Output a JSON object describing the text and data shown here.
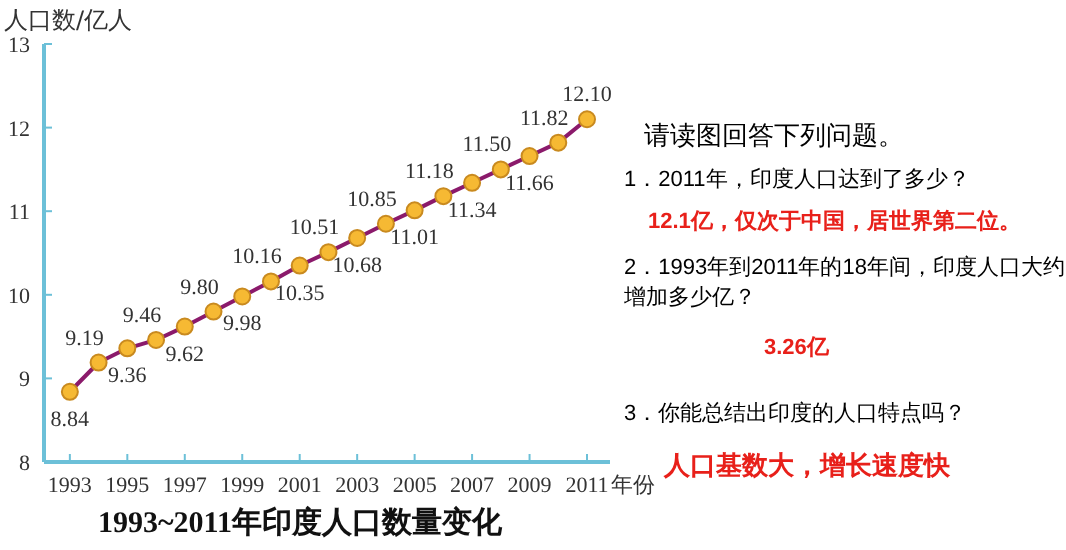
{
  "chart_data": [
    {
      "type": "line",
      "title": "1993~2011年印度人口数量变化",
      "ylabel": "人口数/亿人",
      "xlabel": "年份",
      "x": [
        1993,
        1994,
        1995,
        1996,
        1997,
        1998,
        1999,
        2000,
        2001,
        2002,
        2003,
        2004,
        2005,
        2006,
        2007,
        2008,
        2009,
        2010,
        2011
      ],
      "series": [
        {
          "color": "#8b1a6b",
          "values": [
            8.84,
            9.19,
            9.36,
            9.46,
            9.62,
            9.8,
            9.98,
            10.16,
            10.35,
            10.51,
            10.68,
            10.85,
            11.01,
            11.18,
            11.34,
            11.5,
            11.66,
            11.82,
            12.1
          ]
        }
      ],
      "value_labels": [
        "8.84",
        "9.19",
        "9.36",
        "9.46",
        "9.62",
        "9.80",
        "9.98",
        "10.16",
        "10.35",
        "10.51",
        "10.68",
        "10.85",
        "11.01",
        "11.18",
        "11.34",
        "11.50",
        "11.66",
        "11.82",
        "12.10"
      ],
      "xlim": [
        1992.1,
        2011.8
      ],
      "xticks": [
        1993,
        1995,
        1997,
        1999,
        2001,
        2003,
        2005,
        2007,
        2009,
        2011
      ],
      "ylim": [
        8,
        13
      ],
      "yticks": [
        8,
        9,
        10,
        11,
        12,
        13
      ],
      "marker": "circle",
      "grid": false
    },
    {
      "type": "other",
      "title": "请读图回答下列问题。",
      "annotations": [
        "1．2011年，印度人口达到了多少？",
        "12.1亿，仅次于中国，居世界第二位。",
        "2．1993年到2011年的18年间，印度人口大约增加多少亿？",
        "3.26亿",
        "3．你能总结出印度的人口特点吗？",
        "人口基数大，增长速度快"
      ]
    }
  ]
}
